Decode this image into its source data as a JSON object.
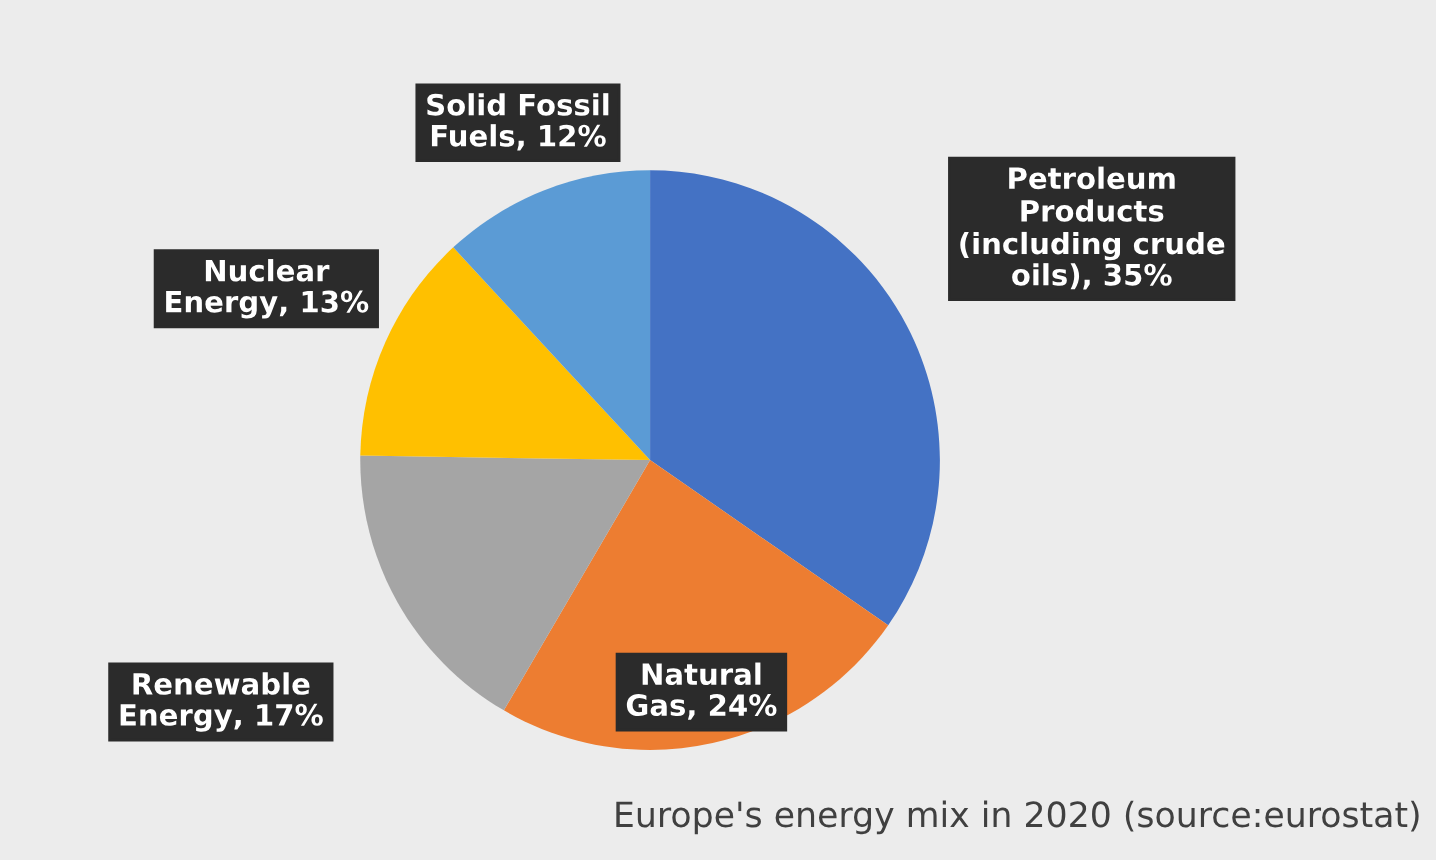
{
  "chart_data": {
    "type": "pie",
    "categories": [
      "Petroleum\nProducts\n(including crude\noils)",
      "Natural\nGas",
      "Renewable\nEnergy",
      "Nuclear\nEnergy",
      "Solid Fossil\nFuels"
    ],
    "values": [
      35,
      24,
      17,
      13,
      12
    ],
    "value_labels": [
      ", 35%",
      ", 24%",
      ", 17%",
      ", 13%",
      ", 12%"
    ],
    "colors": [
      "#4472c4",
      "#ed7d31",
      "#a5a5a5",
      "#ffc000",
      "#5b9bd5"
    ],
    "annotations": [
      "Europe's energy mix in 2020 (source:eurostat)"
    ]
  }
}
